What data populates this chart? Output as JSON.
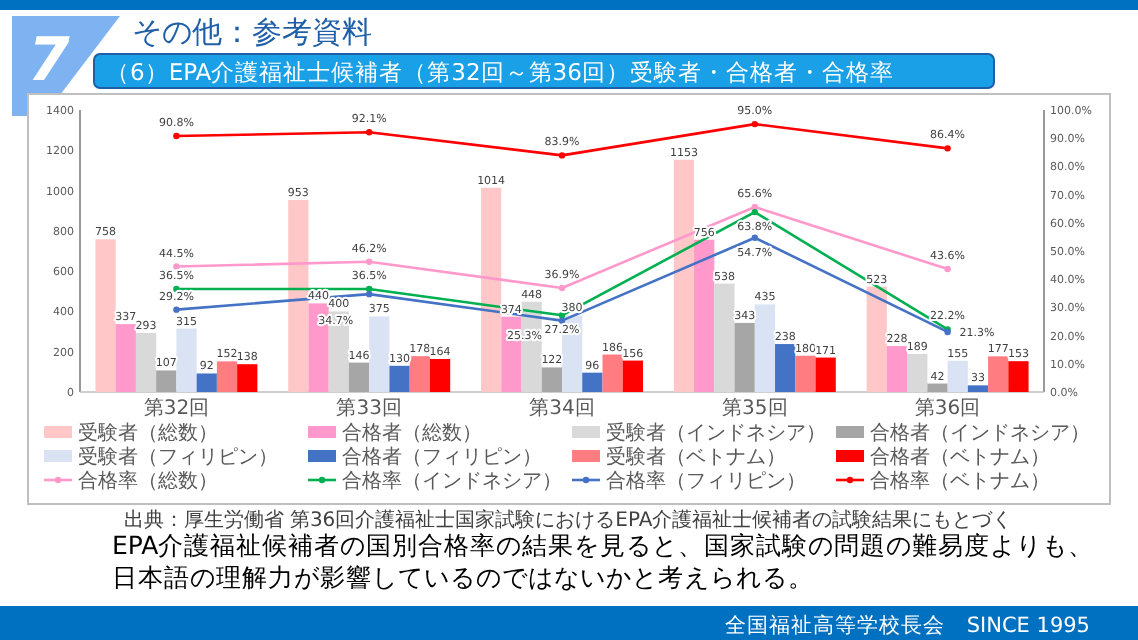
{
  "chart_data": {
    "type": "bar",
    "title": "その他：参考資料",
    "subtitle": "（6）EPA介護福祉士候補者（第32回～第36回）受験者・合格者・合格率",
    "annotations": [
      "7",
      "出典：厚生労働省 第36回介護福祉士国家試験におけるEPA介護福祉士候補者の試験結果にもとづく",
      "EPA介護福祉候補者の国別合格率の結果を見ると、国家試験の問題の難易度よりも、日本語の理解力が影響しているのではないかと考えられる。",
      "全国福祉高等学校長会　SINCE 1995"
    ],
    "categories": [
      "第32回",
      "第33回",
      "第34回",
      "第35回",
      "第36回"
    ],
    "series": [
      {
        "name": "受験者（総数）",
        "color": "#ffc7c7",
        "values": [
          758,
          953,
          1014,
          1153,
          523
        ]
      },
      {
        "name": "合格者（総数）",
        "color": "#ff99cc",
        "values": [
          337,
          440,
          374,
          756,
          228
        ]
      },
      {
        "name": "受験者（インドネシア）",
        "color": "#d9d9d9",
        "values": [
          293,
          400,
          448,
          538,
          189
        ]
      },
      {
        "name": "合格者（インドネシア）",
        "color": "#a6a6a6",
        "values": [
          107,
          146,
          122,
          343,
          42
        ]
      },
      {
        "name": "受験者（フィリピン）",
        "color": "#dae3f3",
        "values": [
          315,
          375,
          380,
          435,
          155
        ]
      },
      {
        "name": "合格者（フィリピン）",
        "color": "#4472c4",
        "values": [
          92,
          130,
          96,
          238,
          33
        ]
      },
      {
        "name": "受験者（ベトナム）",
        "color": "#ff7c80",
        "values": [
          152,
          178,
          186,
          180,
          177
        ]
      },
      {
        "name": "合格者（ベトナム）",
        "color": "#ff0000",
        "values": [
          138,
          164,
          156,
          171,
          153
        ]
      },
      {
        "name": "合格率（総数）",
        "type": "line",
        "axis": "y2",
        "color": "#ff99cc",
        "values": [
          44.5,
          46.2,
          36.9,
          65.6,
          43.6
        ],
        "value_labels": [
          "44.5%",
          "46.2%",
          "36.9%",
          "65.6%",
          "43.6%"
        ]
      },
      {
        "name": "合格率（インドネシア）",
        "type": "line",
        "axis": "y2",
        "color": "#00b050",
        "values": [
          36.5,
          36.5,
          27.2,
          63.8,
          22.2
        ],
        "value_labels": [
          "36.5%",
          "36.5%",
          "27.2%",
          "63.8%",
          "22.2%"
        ]
      },
      {
        "name": "合格率（フィリピン）",
        "type": "line",
        "axis": "y2",
        "color": "#4472c4",
        "values": [
          29.2,
          34.7,
          25.3,
          54.7,
          21.3
        ],
        "value_labels": [
          "29.2%",
          "34.7%",
          "25.3%",
          "54.7%",
          "21.3%"
        ]
      },
      {
        "name": "合格率（ベトナム）",
        "type": "line",
        "axis": "y2",
        "color": "#ff0000",
        "values": [
          90.8,
          92.1,
          83.9,
          95.0,
          86.4
        ],
        "value_labels": [
          "90.8%",
          "92.1%",
          "83.9%",
          "95.0%",
          "86.4%"
        ]
      }
    ],
    "ylim": [
      0,
      1400
    ],
    "yticks": [
      0,
      200,
      400,
      600,
      800,
      1000,
      1200,
      1400
    ],
    "y2lim": [
      0,
      100
    ],
    "y2ticks": [
      {
        "value": 0,
        "label": "0.0%"
      },
      {
        "value": 10,
        "label": "10.0%"
      },
      {
        "value": 20,
        "label": "20.0%"
      },
      {
        "value": 30,
        "label": "30.0%"
      },
      {
        "value": 40,
        "label": "40.0%"
      },
      {
        "value": 50,
        "label": "50.0%"
      },
      {
        "value": 60,
        "label": "60.0%"
      },
      {
        "value": 70,
        "label": "70.0%"
      },
      {
        "value": 80,
        "label": "80.0%"
      },
      {
        "value": 90,
        "label": "90.0%"
      },
      {
        "value": 100,
        "label": "100.0%"
      }
    ],
    "data_labels": true,
    "legend": "bottom",
    "marker": "circle"
  }
}
